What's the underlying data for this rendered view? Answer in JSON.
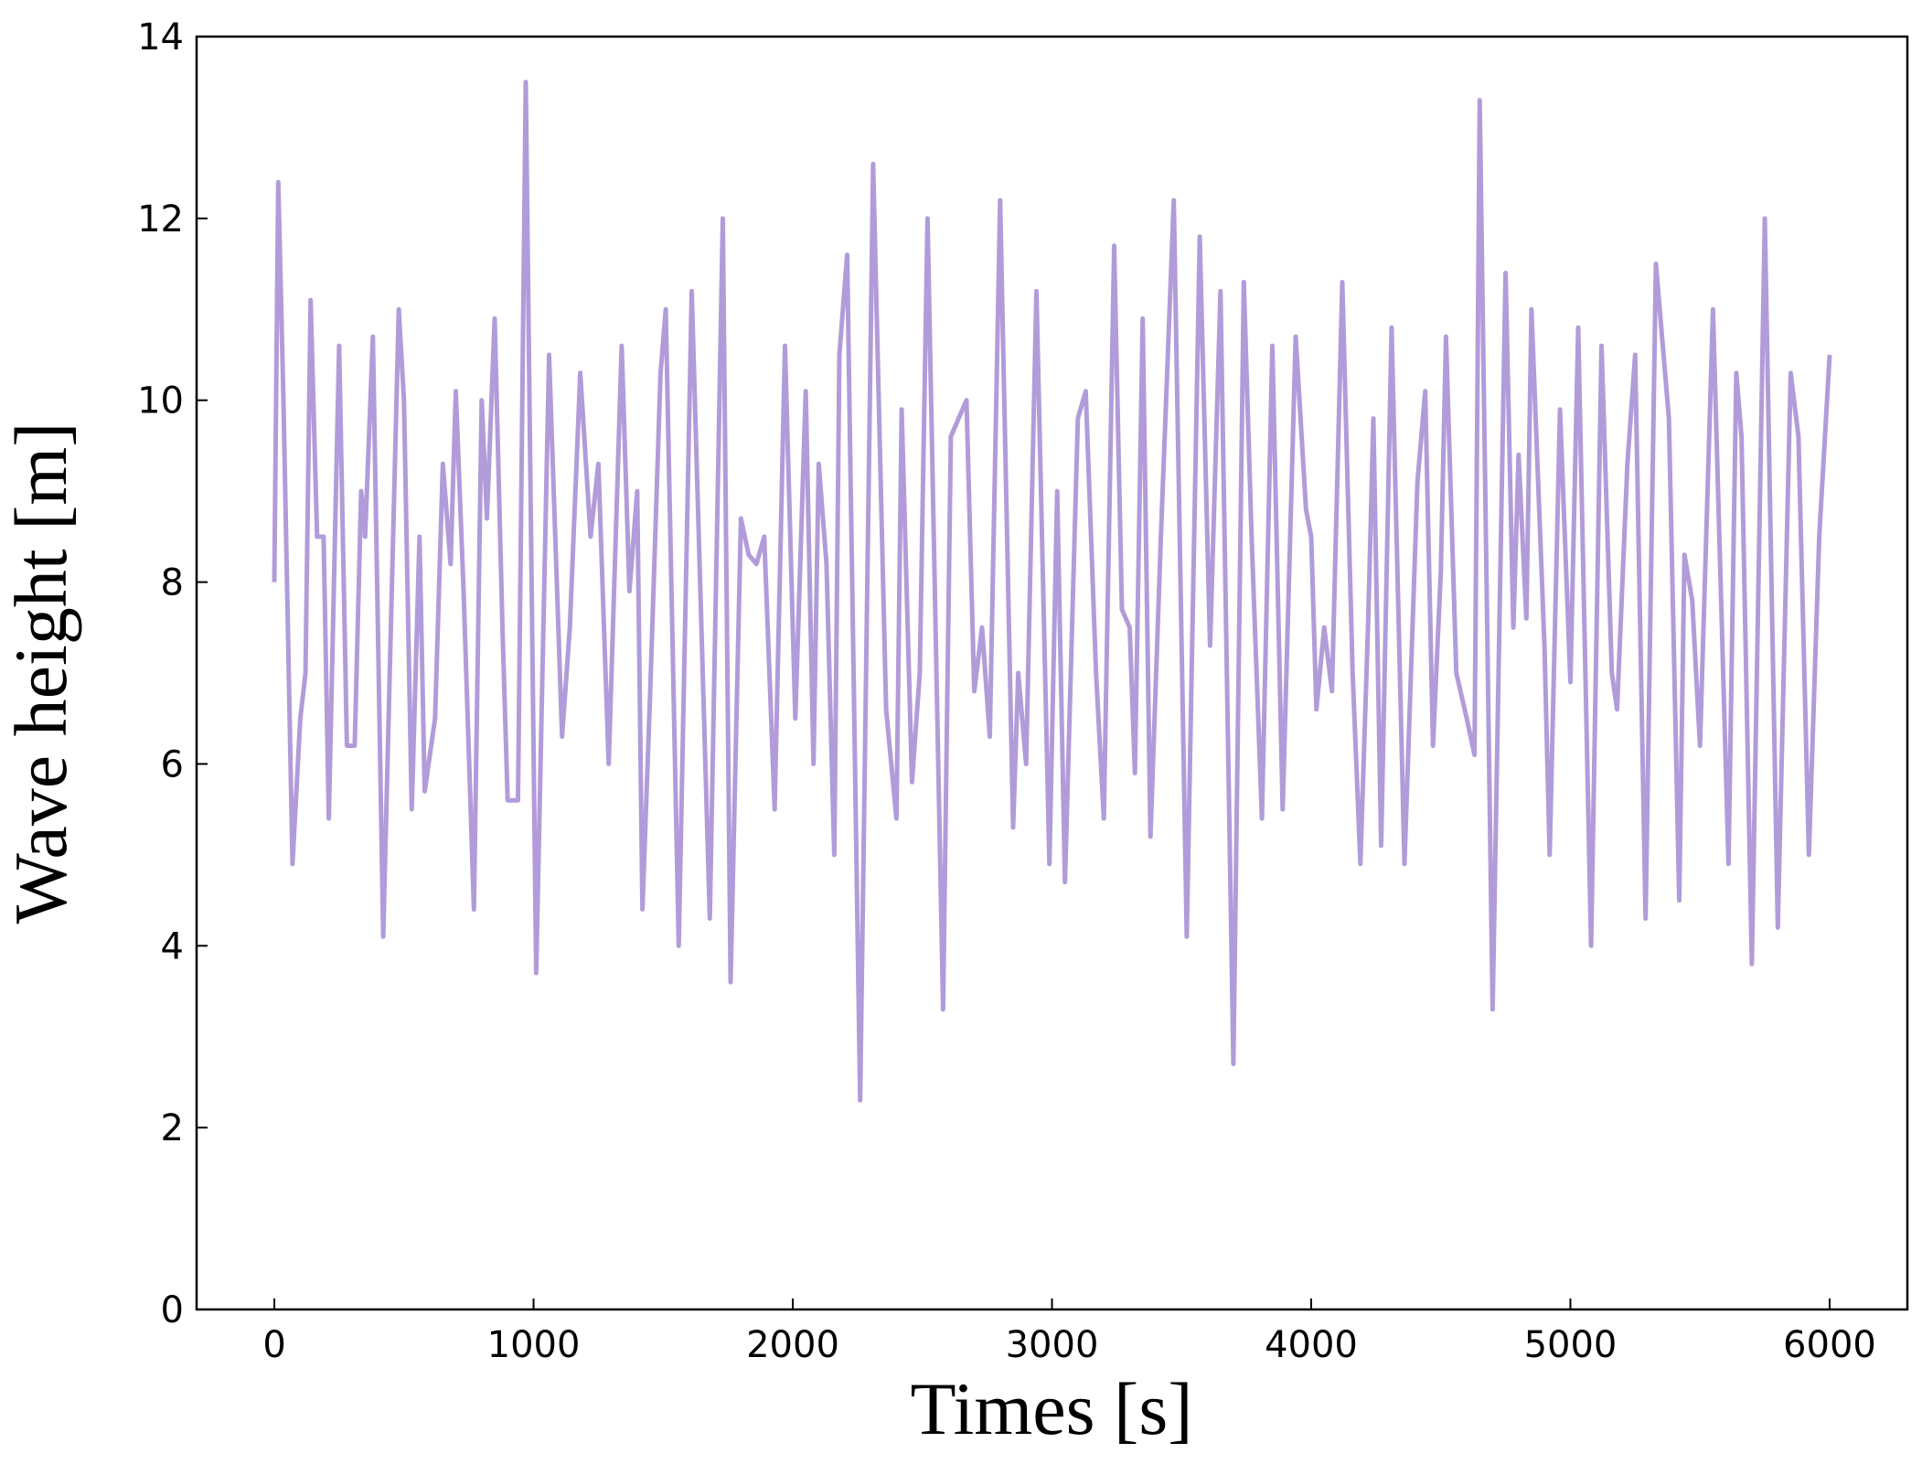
{
  "chart_data": {
    "type": "line",
    "x_label": "Times [s]",
    "y_label": "Wave height [m]",
    "x": [
      0,
      15,
      35,
      70,
      100,
      120,
      140,
      165,
      190,
      210,
      250,
      280,
      310,
      335,
      350,
      380,
      420,
      480,
      500,
      530,
      560,
      580,
      620,
      650,
      680,
      700,
      730,
      770,
      800,
      820,
      850,
      880,
      900,
      940,
      970,
      1010,
      1060,
      1110,
      1140,
      1180,
      1220,
      1250,
      1290,
      1340,
      1370,
      1400,
      1420,
      1450,
      1490,
      1510,
      1560,
      1610,
      1680,
      1730,
      1760,
      1800,
      1830,
      1860,
      1890,
      1930,
      1970,
      2010,
      2050,
      2080,
      2100,
      2130,
      2160,
      2180,
      2210,
      2260,
      2310,
      2360,
      2400,
      2420,
      2460,
      2490,
      2520,
      2580,
      2610,
      2640,
      2670,
      2700,
      2730,
      2760,
      2800,
      2850,
      2870,
      2900,
      2940,
      2990,
      3020,
      3050,
      3100,
      3130,
      3170,
      3200,
      3240,
      3270,
      3300,
      3320,
      3350,
      3380,
      3420,
      3470,
      3520,
      3570,
      3610,
      3650,
      3700,
      3740,
      3770,
      3810,
      3850,
      3890,
      3940,
      3980,
      4000,
      4020,
      4050,
      4080,
      4120,
      4160,
      4190,
      4220,
      4240,
      4270,
      4310,
      4360,
      4410,
      4440,
      4470,
      4500,
      4520,
      4560,
      4600,
      4630,
      4650,
      4700,
      4750,
      4780,
      4800,
      4830,
      4850,
      4900,
      4920,
      4960,
      5000,
      5030,
      5080,
      5120,
      5160,
      5180,
      5220,
      5250,
      5290,
      5330,
      5380,
      5420,
      5440,
      5470,
      5500,
      5550,
      5610,
      5640,
      5660,
      5700,
      5750,
      5800,
      5850,
      5880,
      5920,
      5960,
      6000
    ],
    "series": [
      {
        "name": "Wave height",
        "color": "#b19cd9",
        "values": [
          8.0,
          12.4,
          10,
          4.9,
          6.5,
          7,
          11.1,
          8.5,
          8.5,
          5.4,
          10.6,
          6.2,
          6.2,
          9,
          8.5,
          10.7,
          4.1,
          11,
          10,
          5.5,
          8.5,
          5.7,
          6.5,
          9.3,
          8.2,
          10.1,
          7.9,
          4.4,
          10,
          8.7,
          10.9,
          7.5,
          5.6,
          5.6,
          13.5,
          3.7,
          10.5,
          6.3,
          7.5,
          10.3,
          8.5,
          9.3,
          6,
          10.6,
          7.9,
          9,
          4.4,
          6.8,
          10.3,
          11,
          4,
          11.2,
          4.3,
          12,
          3.6,
          8.7,
          8.3,
          8.2,
          8.5,
          5.5,
          10.6,
          6.5,
          10.1,
          6,
          9.3,
          8.2,
          5,
          10.5,
          11.6,
          2.3,
          12.6,
          6.6,
          5.4,
          9.9,
          5.8,
          7,
          12,
          3.3,
          9.6,
          9.8,
          10,
          6.8,
          7.5,
          6.3,
          12.2,
          5.3,
          7,
          6,
          11.2,
          4.9,
          9,
          4.7,
          9.8,
          10.1,
          7,
          5.4,
          11.7,
          7.7,
          7.5,
          5.9,
          10.9,
          5.2,
          8.5,
          12.2,
          4.1,
          11.8,
          7.3,
          11.2,
          2.7,
          11.3,
          8.5,
          5.4,
          10.6,
          5.5,
          10.7,
          8.8,
          8.5,
          6.6,
          7.5,
          6.8,
          11.3,
          7,
          4.9,
          7.6,
          9.8,
          5.1,
          10.8,
          4.9,
          9.1,
          10.1,
          6.2,
          8.1,
          10.7,
          7,
          6.5,
          6.1,
          13.3,
          3.3,
          11.4,
          7.5,
          9.4,
          7.6,
          11,
          7.3,
          5,
          9.9,
          6.9,
          10.8,
          4,
          10.6,
          7,
          6.6,
          9.3,
          10.5,
          4.3,
          11.5,
          9.8,
          4.5,
          8.3,
          7.8,
          6.2,
          11,
          4.9,
          10.3,
          9.6,
          3.8,
          12,
          4.2,
          10.3,
          9.6,
          5,
          8.5,
          10.5
        ]
      }
    ],
    "xlim": [
      -300,
      6300
    ],
    "ylim": [
      0,
      14
    ],
    "xticks": [
      0,
      1000,
      2000,
      3000,
      4000,
      5000,
      6000
    ],
    "yticks": [
      0,
      2,
      4,
      6,
      8,
      10,
      12,
      14
    ],
    "grid": false
  }
}
